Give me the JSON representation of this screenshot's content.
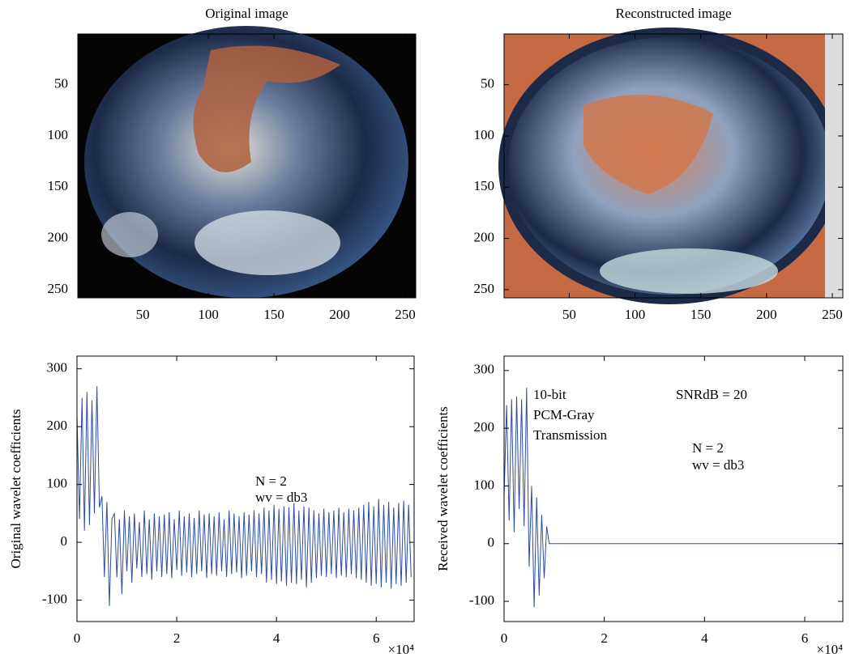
{
  "chart_data": [
    {
      "type": "image",
      "title": "Original image",
      "xlim": [
        0.5,
        258
      ],
      "ylim": [
        0.5,
        258
      ],
      "xticks": [
        50,
        100,
        150,
        200,
        250
      ],
      "yticks": [
        50,
        100,
        150,
        200,
        250
      ]
    },
    {
      "type": "image",
      "title": "Reconstructed image",
      "xlim": [
        0.5,
        258
      ],
      "ylim": [
        0.5,
        258
      ],
      "xticks": [
        50,
        100,
        150,
        200,
        250
      ],
      "yticks": [
        50,
        100,
        150,
        200,
        250
      ]
    },
    {
      "type": "line",
      "ylabel": "Original wavelet coefficients",
      "x_multiplier": "×10⁴",
      "annotations": [
        "N = 2",
        "wv = db3"
      ],
      "xlim": [
        0,
        67600
      ],
      "ylim": [
        -137,
        322
      ],
      "xticks": [
        0,
        {
          "value": 20000,
          "label": "2"
        },
        {
          "value": 40000,
          "label": "4"
        },
        {
          "value": 60000,
          "label": "6"
        }
      ],
      "yticks": [
        -100,
        0,
        100,
        200,
        300
      ],
      "x": [
        0,
        500,
        1000,
        1500,
        2000,
        2500,
        3000,
        3500,
        4000,
        4500,
        5000,
        5500,
        6000,
        6500,
        7000,
        7500,
        8000,
        8500,
        9000,
        9500,
        10000,
        10500,
        11000,
        11500,
        12000,
        12500,
        13000,
        13500,
        14000,
        14500,
        15000,
        15500,
        16000,
        16500,
        17000,
        17500,
        18000,
        18500,
        19000,
        19500,
        20000,
        20500,
        21000,
        21500,
        22000,
        22500,
        23000,
        23500,
        24000,
        24500,
        25000,
        25500,
        26000,
        26500,
        27000,
        27500,
        28000,
        28500,
        29000,
        29500,
        30000,
        30500,
        31000,
        31500,
        32000,
        32500,
        33000,
        33500,
        34000,
        34500,
        35000,
        35500,
        36000,
        36500,
        37000,
        37500,
        38000,
        38500,
        39000,
        39500,
        40000,
        40500,
        41000,
        41500,
        42000,
        42500,
        43000,
        43500,
        44000,
        44500,
        45000,
        45500,
        46000,
        46500,
        47000,
        47500,
        48000,
        48500,
        49000,
        49500,
        50000,
        50500,
        51000,
        51500,
        52000,
        52500,
        53000,
        53500,
        54000,
        54500,
        55000,
        55500,
        56000,
        56500,
        57000,
        57500,
        58000,
        58500,
        59000,
        59500,
        60000,
        60500,
        61000,
        61500,
        62000,
        62500,
        63000,
        63500,
        64000,
        64500,
        65000,
        65500,
        66000,
        66500,
        67000
      ],
      "series": [
        {
          "color": "#2f4d9e",
          "values": [
            220,
            40,
            250,
            20,
            260,
            30,
            245,
            50,
            270,
            60,
            80,
            -60,
            70,
            -110,
            40,
            50,
            -60,
            40,
            -90,
            55,
            -50,
            45,
            -70,
            50,
            -45,
            35,
            -60,
            55,
            -55,
            40,
            -65,
            50,
            -50,
            45,
            -60,
            48,
            -55,
            52,
            -62,
            40,
            -48,
            55,
            -58,
            45,
            -52,
            50,
            -60,
            42,
            -55,
            55,
            -50,
            48,
            -62,
            50,
            -55,
            45,
            -58,
            52,
            -50,
            40,
            -60,
            55,
            -55,
            50,
            -52,
            45,
            -62,
            52,
            -58,
            48,
            -50,
            55,
            -60,
            50,
            -55,
            60,
            -70,
            55,
            -65,
            65,
            -72,
            58,
            -68,
            62,
            -75,
            60,
            -70,
            68,
            -72,
            55,
            -65,
            62,
            -78,
            60,
            -70,
            55,
            -62,
            50,
            -58,
            58,
            -60,
            52,
            -55,
            55,
            -62,
            60,
            -58,
            52,
            -60,
            58,
            -55,
            55,
            -62,
            60,
            -65,
            65,
            -70,
            70,
            -75,
            62,
            -72,
            75,
            -78,
            65,
            -70,
            70,
            -80,
            60,
            -72,
            68,
            -75,
            72,
            -70,
            65,
            -60
          ]
        }
      ]
    },
    {
      "type": "line",
      "ylabel": "Received wavelet coefficients",
      "x_multiplier": "×10⁴",
      "annotations": [
        "10-bit",
        "PCM-Gray",
        "Transmission",
        "SNRdB = 20",
        "N = 2",
        "wv = db3"
      ],
      "xlim": [
        0,
        67600
      ],
      "ylim": [
        -135,
        325
      ],
      "xticks": [
        0,
        {
          "value": 20000,
          "label": "2"
        },
        {
          "value": 40000,
          "label": "4"
        },
        {
          "value": 60000,
          "label": "6"
        }
      ],
      "yticks": [
        -100,
        0,
        100,
        200,
        300
      ],
      "x": [
        0,
        500,
        1000,
        1500,
        2000,
        2500,
        3000,
        3500,
        4000,
        4500,
        5000,
        5500,
        6000,
        6500,
        7000,
        7500,
        8000,
        8500,
        9000,
        67500
      ],
      "series": [
        {
          "color": "#2f4d9e",
          "values": [
            80,
            240,
            40,
            250,
            20,
            255,
            60,
            250,
            30,
            270,
            -40,
            100,
            -110,
            80,
            -90,
            50,
            -60,
            30,
            0,
            0
          ]
        }
      ]
    }
  ]
}
